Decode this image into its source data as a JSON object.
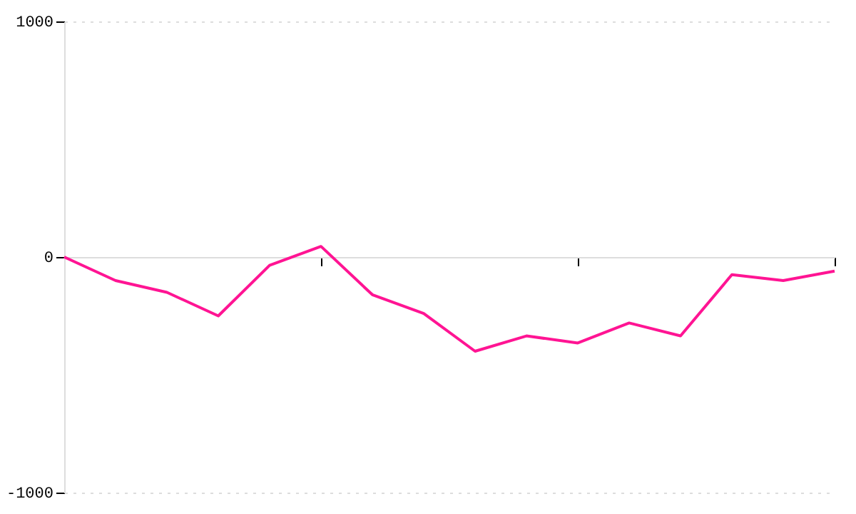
{
  "chart_data": {
    "type": "line",
    "categories": [
      null,
      null,
      null,
      null,
      null,
      null,
      null,
      null,
      null,
      null,
      null,
      null,
      null,
      null,
      null,
      null
    ],
    "series": [
      {
        "color": "#ff1493",
        "values": [
          0,
          -100,
          -150,
          -250,
          -35,
          45,
          -160,
          -240,
          -400,
          -335,
          -365,
          -280,
          -335,
          -75,
          -100,
          -60
        ]
      }
    ],
    "ylim": [
      -1000,
      1000
    ],
    "yticks": [
      -1000,
      0,
      1000
    ],
    "tick_labels": "y",
    "grid": "y",
    "marker": "none",
    "line_style": "solid"
  }
}
